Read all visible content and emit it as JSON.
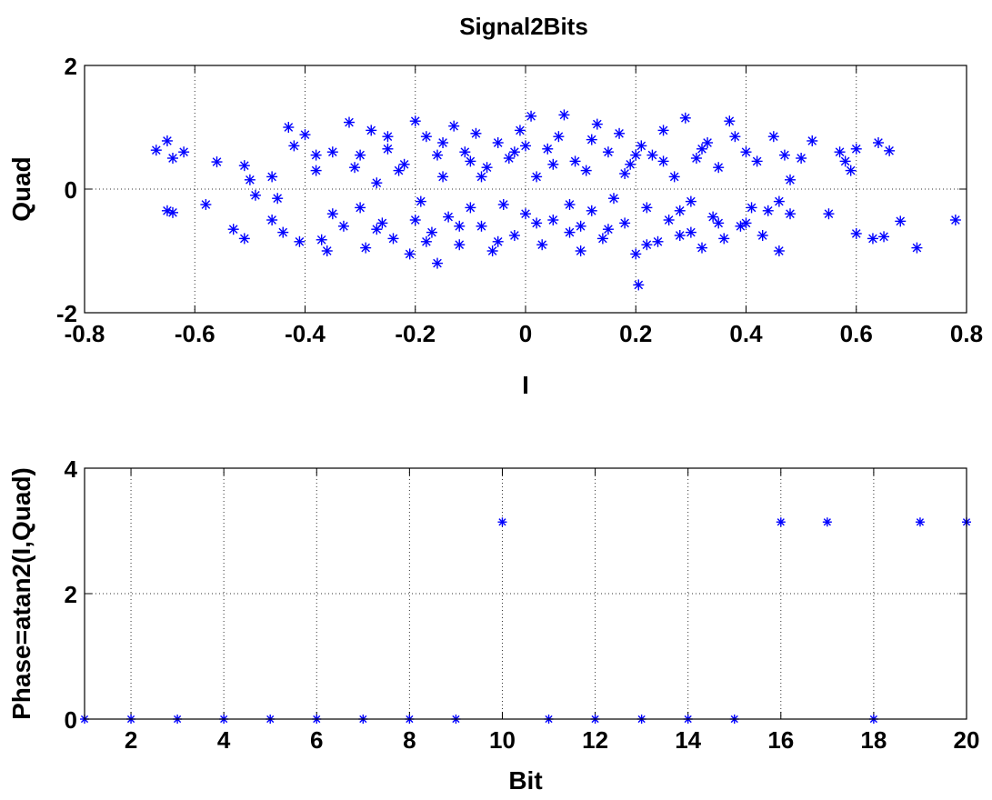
{
  "figure": {
    "title": "Signal2Bits",
    "marker_color": "#0000ff"
  },
  "chart_data": [
    {
      "type": "scatter",
      "title": "Signal2Bits",
      "xlabel": "I",
      "ylabel": "Quad",
      "xlim": [
        -0.8,
        0.8
      ],
      "ylim": [
        -2,
        2
      ],
      "xticks": [
        -0.8,
        -0.6,
        -0.4,
        -0.2,
        0,
        0.2,
        0.4,
        0.6,
        0.8
      ],
      "xtick_labels": [
        "-0.8",
        "-0.6",
        "-0.4",
        "-0.2",
        "0",
        "0.2",
        "0.4",
        "0.6",
        "0.8"
      ],
      "yticks": [
        -2,
        0,
        2
      ],
      "ytick_labels": [
        "-2",
        "0",
        "2"
      ],
      "grid": true,
      "marker": "asterisk",
      "color": "#0000ff",
      "points": [
        [
          -0.67,
          0.63
        ],
        [
          -0.65,
          0.78
        ],
        [
          -0.64,
          0.5
        ],
        [
          -0.62,
          0.6
        ],
        [
          -0.65,
          -0.35
        ],
        [
          -0.64,
          -0.38
        ],
        [
          -0.58,
          -0.25
        ],
        [
          -0.56,
          0.44
        ],
        [
          -0.53,
          -0.65
        ],
        [
          -0.51,
          -0.8
        ],
        [
          -0.51,
          0.38
        ],
        [
          -0.5,
          0.15
        ],
        [
          -0.49,
          -0.1
        ],
        [
          -0.46,
          -0.5
        ],
        [
          -0.46,
          0.2
        ],
        [
          -0.45,
          -0.15
        ],
        [
          -0.44,
          -0.7
        ],
        [
          -0.43,
          1.0
        ],
        [
          -0.42,
          0.7
        ],
        [
          -0.41,
          -0.85
        ],
        [
          -0.4,
          0.88
        ],
        [
          -0.38,
          0.3
        ],
        [
          -0.37,
          -0.82
        ],
        [
          -0.36,
          -1.0
        ],
        [
          -0.35,
          0.6
        ],
        [
          -0.33,
          -0.6
        ],
        [
          -0.32,
          1.08
        ],
        [
          -0.31,
          0.35
        ],
        [
          -0.3,
          -0.3
        ],
        [
          -0.29,
          -0.95
        ],
        [
          -0.28,
          0.95
        ],
        [
          -0.27,
          0.1
        ],
        [
          -0.26,
          -0.55
        ],
        [
          -0.25,
          0.65
        ],
        [
          -0.24,
          -0.8
        ],
        [
          -0.22,
          0.4
        ],
        [
          -0.21,
          -1.05
        ],
        [
          -0.2,
          1.1
        ],
        [
          -0.19,
          -0.2
        ],
        [
          -0.18,
          0.85
        ],
        [
          -0.17,
          -0.7
        ],
        [
          -0.16,
          0.55
        ],
        [
          -0.16,
          -1.2
        ],
        [
          -0.15,
          0.2
        ],
        [
          -0.14,
          -0.45
        ],
        [
          -0.13,
          1.02
        ],
        [
          -0.12,
          -0.9
        ],
        [
          -0.11,
          0.6
        ],
        [
          -0.1,
          -0.3
        ],
        [
          -0.09,
          0.9
        ],
        [
          -0.08,
          -0.6
        ],
        [
          -0.07,
          0.35
        ],
        [
          -0.06,
          -1.0
        ],
        [
          -0.05,
          0.75
        ],
        [
          -0.04,
          -0.25
        ],
        [
          -0.03,
          0.5
        ],
        [
          -0.02,
          -0.75
        ],
        [
          -0.01,
          0.95
        ],
        [
          0.0,
          -0.4
        ],
        [
          0.01,
          1.18
        ],
        [
          0.02,
          0.2
        ],
        [
          0.03,
          -0.9
        ],
        [
          0.04,
          0.65
        ],
        [
          0.05,
          -0.5
        ],
        [
          0.06,
          0.85
        ],
        [
          0.07,
          1.2
        ],
        [
          0.08,
          -0.7
        ],
        [
          0.09,
          0.45
        ],
        [
          0.1,
          -1.0
        ],
        [
          0.11,
          0.3
        ],
        [
          0.12,
          -0.35
        ],
        [
          0.13,
          1.05
        ],
        [
          0.14,
          -0.8
        ],
        [
          0.15,
          0.6
        ],
        [
          0.16,
          -0.15
        ],
        [
          0.17,
          0.9
        ],
        [
          0.18,
          -0.55
        ],
        [
          0.19,
          0.4
        ],
        [
          0.2,
          -1.05
        ],
        [
          0.205,
          -1.55
        ],
        [
          0.21,
          0.7
        ],
        [
          0.22,
          -0.3
        ],
        [
          0.23,
          0.55
        ],
        [
          0.24,
          -0.85
        ],
        [
          0.25,
          0.95
        ],
        [
          0.26,
          -0.5
        ],
        [
          0.27,
          0.2
        ],
        [
          0.28,
          -0.75
        ],
        [
          0.29,
          1.15
        ],
        [
          0.3,
          -0.2
        ],
        [
          0.31,
          0.5
        ],
        [
          0.32,
          -0.95
        ],
        [
          0.33,
          0.75
        ],
        [
          0.34,
          -0.45
        ],
        [
          0.35,
          0.35
        ],
        [
          0.36,
          -0.8
        ],
        [
          0.37,
          1.1
        ],
        [
          0.38,
          0.85
        ],
        [
          0.39,
          -0.6
        ],
        [
          0.4,
          0.6
        ],
        [
          0.41,
          -0.3
        ],
        [
          0.42,
          0.45
        ],
        [
          0.43,
          -0.75
        ],
        [
          0.44,
          -0.35
        ],
        [
          0.45,
          0.85
        ],
        [
          0.46,
          -0.2
        ],
        [
          0.46,
          -1.0
        ],
        [
          0.47,
          0.55
        ],
        [
          0.48,
          0.15
        ],
        [
          0.48,
          -0.4
        ],
        [
          0.5,
          0.5
        ],
        [
          0.52,
          0.78
        ],
        [
          0.55,
          -0.4
        ],
        [
          0.57,
          0.6
        ],
        [
          0.58,
          0.45
        ],
        [
          0.59,
          0.3
        ],
        [
          0.6,
          0.65
        ],
        [
          0.6,
          -0.72
        ],
        [
          0.63,
          -0.8
        ],
        [
          0.64,
          0.75
        ],
        [
          0.65,
          -0.77
        ],
        [
          0.66,
          0.62
        ],
        [
          0.68,
          -0.52
        ],
        [
          0.71,
          -0.95
        ],
        [
          0.78,
          -0.5
        ],
        [
          -0.3,
          0.55
        ],
        [
          -0.27,
          -0.65
        ],
        [
          -0.23,
          0.3
        ],
        [
          -0.2,
          -0.5
        ],
        [
          -0.15,
          0.75
        ],
        [
          -0.12,
          -0.6
        ],
        [
          -0.08,
          0.2
        ],
        [
          -0.05,
          -0.85
        ],
        [
          -0.02,
          0.6
        ],
        [
          0.02,
          -0.55
        ],
        [
          0.05,
          0.4
        ],
        [
          0.08,
          -0.25
        ],
        [
          0.12,
          0.8
        ],
        [
          0.15,
          -0.65
        ],
        [
          0.18,
          0.25
        ],
        [
          0.22,
          -0.9
        ],
        [
          0.25,
          0.45
        ],
        [
          0.28,
          -0.35
        ],
        [
          0.32,
          0.65
        ],
        [
          0.35,
          -0.55
        ],
        [
          -0.35,
          -0.4
        ],
        [
          -0.25,
          0.85
        ],
        [
          -0.18,
          -0.85
        ],
        [
          -0.1,
          0.45
        ],
        [
          0.0,
          0.7
        ],
        [
          0.1,
          -0.6
        ],
        [
          0.2,
          0.55
        ],
        [
          0.3,
          -0.7
        ],
        [
          -0.38,
          0.55
        ],
        [
          0.4,
          -0.55
        ]
      ]
    },
    {
      "type": "scatter",
      "xlabel": "Bit",
      "ylabel": "Phase=atan2(I,Quad)",
      "xlim": [
        1,
        20
      ],
      "ylim": [
        0,
        4
      ],
      "xticks": [
        2,
        4,
        6,
        8,
        10,
        12,
        14,
        16,
        18,
        20
      ],
      "xtick_labels": [
        "2",
        "4",
        "6",
        "8",
        "10",
        "12",
        "14",
        "16",
        "18",
        "20"
      ],
      "yticks": [
        0,
        2,
        4
      ],
      "ytick_labels": [
        "0",
        "2",
        "4"
      ],
      "grid": true,
      "marker": "asterisk",
      "color": "#0000ff",
      "x": [
        1,
        2,
        3,
        4,
        5,
        6,
        7,
        8,
        9,
        10,
        11,
        12,
        13,
        14,
        15,
        16,
        17,
        18,
        19,
        20
      ],
      "y": [
        0,
        0,
        0,
        0,
        0,
        0,
        0,
        0,
        0,
        3.1416,
        0,
        0,
        0,
        0,
        0,
        3.1416,
        3.1416,
        0,
        3.1416,
        3.1416
      ]
    }
  ]
}
